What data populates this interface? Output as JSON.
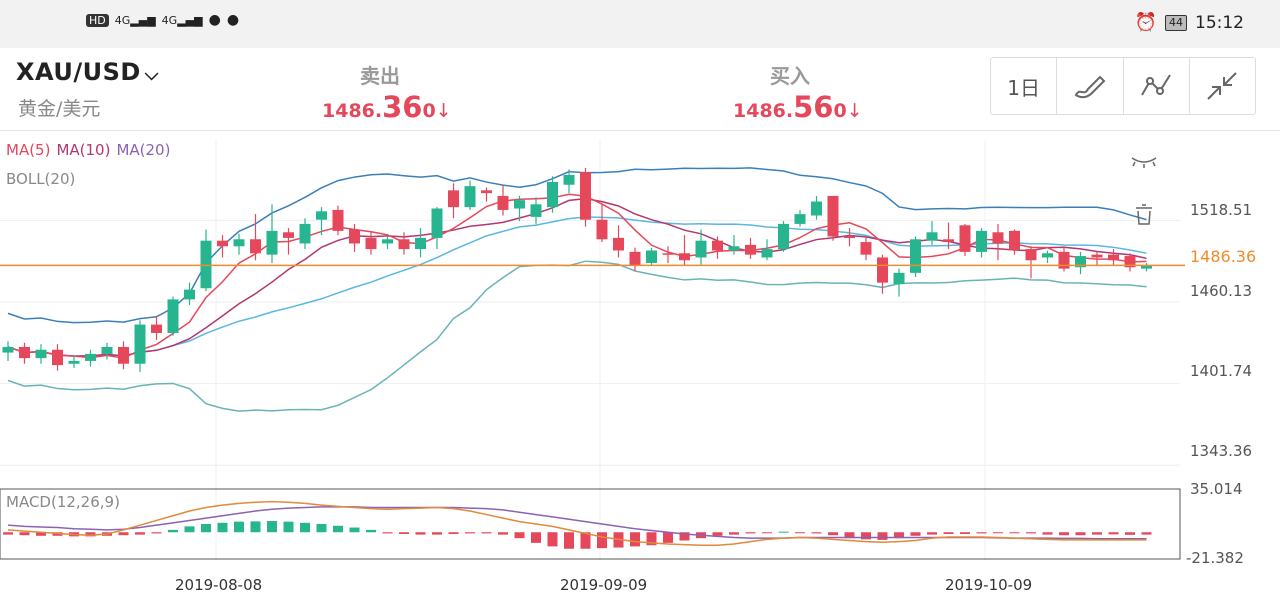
{
  "status_bar": {
    "left_icons": [
      "HD",
      "4G",
      "4G",
      "qq-icon",
      "wechat-icon"
    ],
    "battery": "44",
    "time": "15:12"
  },
  "header": {
    "symbol": "XAU/USD",
    "symbol_subtitle": "黄金/美元",
    "sell_label": "卖出",
    "sell_price_pre": "1486.",
    "sell_price_big": "36",
    "sell_price_post": "0",
    "buy_label": "买入",
    "buy_price_pre": "1486.",
    "buy_price_big": "56",
    "buy_price_post": "0",
    "timeframe": "1日",
    "arrow": "↓"
  },
  "legend": {
    "ma5": "MA(5)",
    "ma10": "MA(10)",
    "ma20": "MA(20)",
    "boll": "BOLL(20)",
    "macd": "MACD(12,26,9)"
  },
  "colors": {
    "up": "#26b58e",
    "down": "#e5475b",
    "ma5": "#e5475b",
    "ma10": "#b4366e",
    "ma20": "#8a63b5",
    "boll_mid": "#5ab7e3",
    "boll_upper": "#3b7fb8",
    "boll_lower": "#6ab3b5",
    "price_line": "#f28b2a"
  },
  "chart_data": {
    "type": "candlestick",
    "y_ticks": [
      "1518.51",
      "1460.13",
      "1401.74",
      "1343.36"
    ],
    "current_price": "1486.36",
    "macd_ticks": [
      "35.014",
      "-21.382"
    ],
    "x_ticks": [
      "2019-08-08",
      "2019-09-09",
      "2019-10-09"
    ],
    "candles": [
      [
        1424,
        1428,
        1418,
        1432
      ],
      [
        1428,
        1420,
        1416,
        1431
      ],
      [
        1420,
        1426,
        1416,
        1430
      ],
      [
        1426,
        1415,
        1411,
        1430
      ],
      [
        1416,
        1418,
        1413,
        1422
      ],
      [
        1418,
        1423,
        1414,
        1426
      ],
      [
        1423,
        1428,
        1419,
        1431
      ],
      [
        1428,
        1416,
        1412,
        1432
      ],
      [
        1416,
        1444,
        1410,
        1447
      ],
      [
        1444,
        1438,
        1433,
        1450
      ],
      [
        1438,
        1462,
        1436,
        1464
      ],
      [
        1462,
        1469,
        1458,
        1474
      ],
      [
        1470,
        1504,
        1468,
        1512
      ],
      [
        1504,
        1500,
        1492,
        1508
      ],
      [
        1500,
        1505,
        1494,
        1509
      ],
      [
        1505,
        1495,
        1490,
        1523
      ],
      [
        1494,
        1511,
        1488,
        1530
      ],
      [
        1510,
        1506,
        1494,
        1513
      ],
      [
        1502,
        1516,
        1498,
        1520
      ],
      [
        1519,
        1525,
        1508,
        1528
      ],
      [
        1526,
        1511,
        1508,
        1529
      ],
      [
        1512,
        1502,
        1496,
        1516
      ],
      [
        1506,
        1498,
        1494,
        1510
      ],
      [
        1502,
        1505,
        1498,
        1508
      ],
      [
        1505,
        1498,
        1494,
        1510
      ],
      [
        1498,
        1506,
        1492,
        1513
      ],
      [
        1506,
        1527,
        1498,
        1528
      ],
      [
        1540,
        1528,
        1520,
        1545
      ],
      [
        1528,
        1543,
        1526,
        1547
      ],
      [
        1540,
        1538,
        1532,
        1542
      ],
      [
        1536,
        1526,
        1522,
        1544
      ],
      [
        1527,
        1533,
        1518,
        1536
      ],
      [
        1521,
        1530,
        1516,
        1535
      ],
      [
        1528,
        1546,
        1524,
        1550
      ],
      [
        1544,
        1551,
        1538,
        1555
      ],
      [
        1553,
        1519,
        1514,
        1556
      ],
      [
        1519,
        1505,
        1503,
        1530
      ],
      [
        1506,
        1497,
        1492,
        1515
      ],
      [
        1496,
        1486,
        1482,
        1499
      ],
      [
        1488,
        1497,
        1486,
        1499
      ],
      [
        1495,
        1494,
        1488,
        1500
      ],
      [
        1495,
        1490,
        1486,
        1508
      ],
      [
        1492,
        1504,
        1486,
        1512
      ],
      [
        1504,
        1497,
        1491,
        1507
      ],
      [
        1497,
        1500,
        1494,
        1508
      ],
      [
        1501,
        1494,
        1491,
        1506
      ],
      [
        1492,
        1498,
        1490,
        1505
      ],
      [
        1498,
        1516,
        1496,
        1518
      ],
      [
        1516,
        1523,
        1514,
        1526
      ],
      [
        1522,
        1532,
        1519,
        1536
      ],
      [
        1536,
        1507,
        1504,
        1536
      ],
      [
        1507,
        1506,
        1500,
        1513
      ],
      [
        1503,
        1494,
        1490,
        1507
      ],
      [
        1492,
        1474,
        1466,
        1494
      ],
      [
        1473,
        1481,
        1464,
        1484
      ],
      [
        1481,
        1505,
        1478,
        1507
      ],
      [
        1504,
        1510,
        1501,
        1518
      ],
      [
        1505,
        1503,
        1498,
        1517
      ],
      [
        1515,
        1496,
        1493,
        1516
      ],
      [
        1496,
        1511,
        1492,
        1513
      ],
      [
        1510,
        1502,
        1490,
        1516
      ],
      [
        1511,
        1497,
        1494,
        1512
      ],
      [
        1498,
        1490,
        1477,
        1500
      ],
      [
        1492,
        1495,
        1488,
        1497
      ],
      [
        1496,
        1484,
        1482,
        1500
      ],
      [
        1485,
        1493,
        1480,
        1496
      ],
      [
        1494,
        1492,
        1486,
        1496
      ],
      [
        1494,
        1490,
        1486,
        1498
      ],
      [
        1493,
        1485,
        1482,
        1495
      ],
      [
        1484,
        1486,
        1482,
        1488
      ]
    ],
    "macd_hist": [
      -2,
      -2.5,
      -3,
      -3,
      -3.5,
      -3.5,
      -3,
      -2.5,
      -2,
      -1,
      2,
      5,
      7,
      8,
      9,
      9.2,
      9.5,
      9,
      8,
      7,
      5.5,
      4,
      2,
      -1,
      -1.5,
      -2,
      -2,
      -1.5,
      -1,
      -1,
      -2,
      -5,
      -9,
      -12,
      -14,
      -14,
      -13.5,
      -13,
      -12,
      -11,
      -9,
      -7,
      -5,
      -3,
      -2,
      -1,
      -0.5,
      0.5,
      -0.5,
      -1,
      -2.5,
      -5,
      -6,
      -6.5,
      -5,
      -3,
      -2,
      -1.5,
      -1.5,
      -1,
      -0.5,
      -0.5,
      -1,
      -2,
      -2.5,
      -2.5,
      -2,
      -1.8,
      -2.2,
      -2
    ],
    "macd_dif": [
      2,
      1,
      0,
      -1,
      -2,
      -2.5,
      -1.5,
      2,
      6,
      10,
      14,
      18,
      21,
      23,
      24.5,
      25.5,
      26,
      25.5,
      24.5,
      23,
      22,
      21,
      20,
      19.5,
      20,
      20.5,
      21,
      20,
      18,
      15,
      12,
      9,
      7,
      5,
      2,
      -1,
      -4,
      -6,
      -8,
      -9,
      -10,
      -10.5,
      -11,
      -11,
      -10,
      -8,
      -6,
      -5,
      -4.5,
      -5,
      -6,
      -7,
      -8,
      -8.5,
      -8,
      -7,
      -5,
      -4,
      -4,
      -4,
      -4.5,
      -5,
      -5.5,
      -6,
      -6.5,
      -6.5,
      -6.5,
      -6.5,
      -6.5,
      -6.5
    ],
    "macd_dea": [
      6,
      5,
      4.5,
      4,
      3,
      2.5,
      2,
      2.5,
      4,
      6,
      8,
      10,
      12,
      14,
      16,
      18,
      19.5,
      20.5,
      21,
      21.5,
      21.5,
      21.5,
      21,
      21,
      21,
      21,
      21,
      21,
      20.5,
      20,
      19,
      17,
      15,
      13,
      11,
      9,
      7,
      5,
      3,
      1.5,
      0,
      -1.5,
      -2.5,
      -3.5,
      -4.5,
      -5,
      -5,
      -5,
      -4.5,
      -4.5,
      -4.5,
      -4.5,
      -4.5,
      -4.5,
      -4.5,
      -4.5,
      -4.5,
      -4.5,
      -4.5,
      -4.5,
      -4.8,
      -5,
      -5,
      -5,
      -5.2,
      -5.2,
      -5.5,
      -5.5,
      -5.5,
      -5.5
    ]
  }
}
